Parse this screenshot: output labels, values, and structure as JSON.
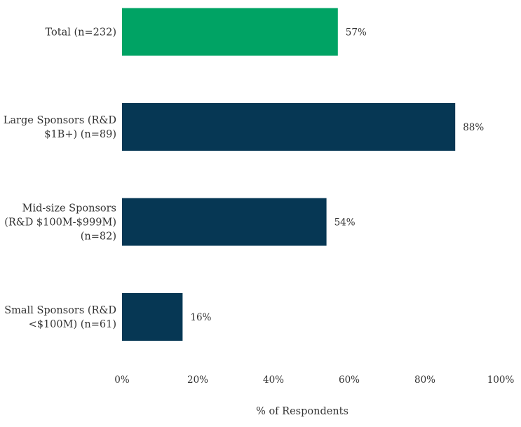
{
  "chart_data": {
    "type": "bar",
    "orientation": "horizontal",
    "categories": [
      [
        "Total (n=232)"
      ],
      [
        "Large Sponsors (R&D",
        "$1B+) (n=89)"
      ],
      [
        "Mid-size Sponsors",
        "(R&D $100M-$999M)",
        "(n=82)"
      ],
      [
        "Small Sponsors (R&D",
        "<$100M) (n=61)"
      ]
    ],
    "values": [
      57,
      88,
      54,
      16
    ],
    "data_labels": [
      "57%",
      "88%",
      "54%",
      "16%"
    ],
    "bar_colors": [
      "#00a364",
      "#063754",
      "#063754",
      "#063754"
    ],
    "xlabel": "% of Respondents",
    "ylabel": "",
    "xlim": [
      0,
      100
    ],
    "x_ticks": [
      0,
      20,
      40,
      60,
      80,
      100
    ],
    "x_tick_labels": [
      "0%",
      "20%",
      "40%",
      "60%",
      "80%",
      "100%"
    ],
    "grid": false,
    "legend": "none"
  }
}
